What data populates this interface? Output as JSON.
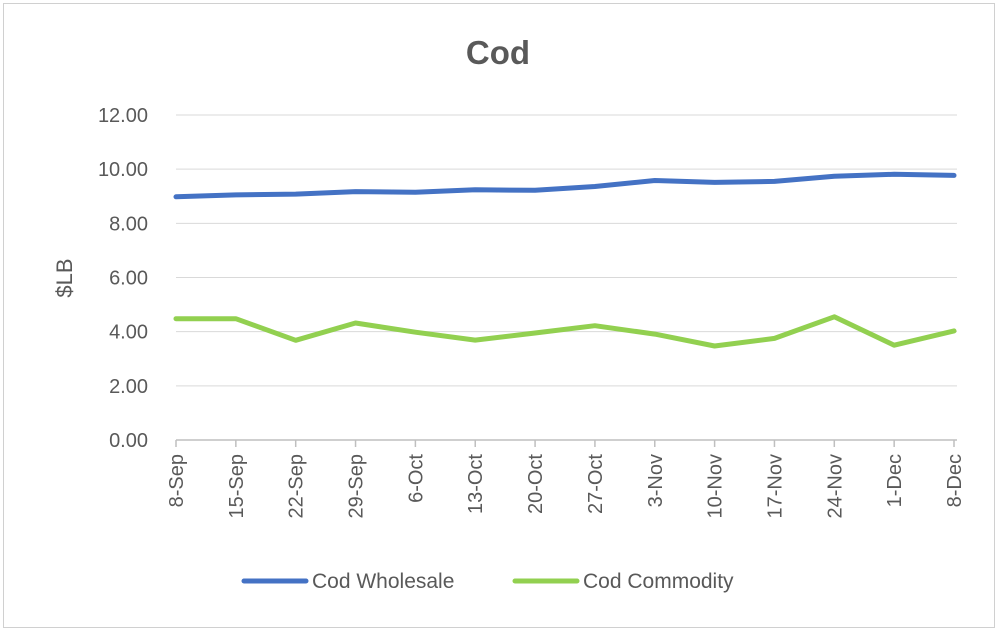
{
  "chart_data": {
    "type": "line",
    "title": "Cod",
    "xlabel": "",
    "ylabel": "$LB",
    "ylim": [
      0,
      12
    ],
    "yticks": [
      "0.00",
      "2.00",
      "4.00",
      "6.00",
      "8.00",
      "10.00",
      "12.00"
    ],
    "categories": [
      "8-Sep",
      "15-Sep",
      "22-Sep",
      "29-Sep",
      "6-Oct",
      "13-Oct",
      "20-Oct",
      "27-Oct",
      "3-Nov",
      "10-Nov",
      "17-Nov",
      "24-Nov",
      "1-Dec",
      "8-Dec"
    ],
    "series": [
      {
        "name": "Cod Wholesale",
        "color": "#4472C4",
        "values": [
          8.98,
          9.05,
          9.08,
          9.17,
          9.15,
          9.24,
          9.22,
          9.36,
          9.58,
          9.51,
          9.55,
          9.74,
          9.81,
          9.77
        ]
      },
      {
        "name": "Cod Commodity",
        "color": "#92D050",
        "values": [
          4.48,
          4.48,
          3.68,
          4.32,
          3.98,
          3.69,
          3.95,
          4.22,
          3.91,
          3.47,
          3.75,
          4.55,
          3.5,
          4.03
        ]
      }
    ],
    "legend": "bottom",
    "grid": true
  }
}
